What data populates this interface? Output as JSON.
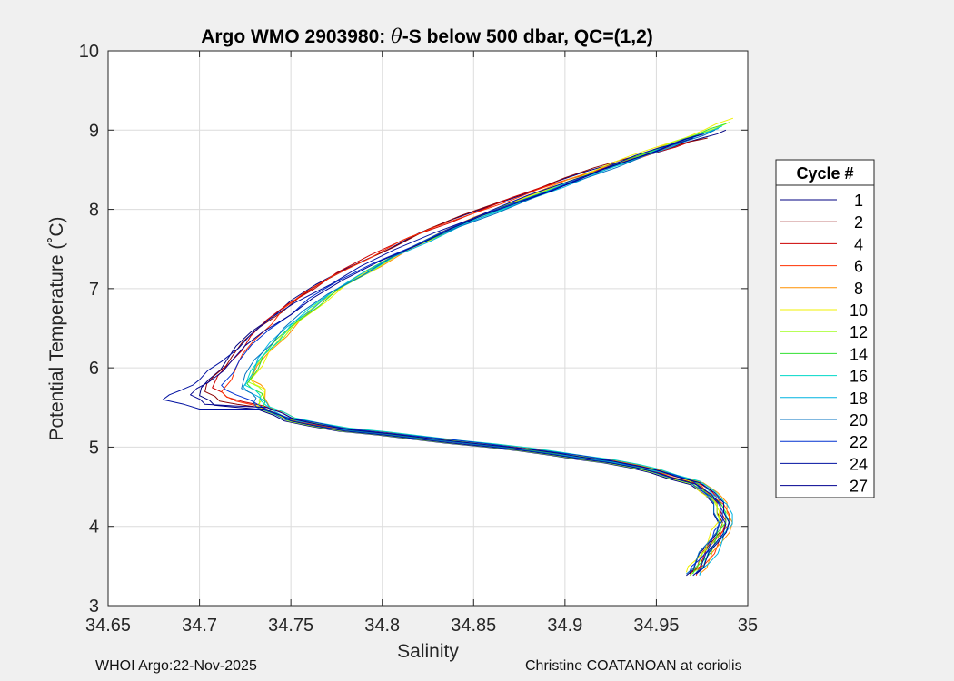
{
  "chart_data": {
    "type": "line",
    "title": "Argo WMO 2903980: θ-S below 500 dbar,  QC=(1,2)",
    "title_prefix": "Argo WMO 2903980: ",
    "title_theta": "θ",
    "title_suffix": "-S below 500 dbar,  QC=(1,2)",
    "xlabel": "Salinity",
    "ylabel": "Potential Temperature (˚C)",
    "xlim": [
      34.65,
      35.0
    ],
    "ylim": [
      3,
      10
    ],
    "xticks": [
      34.65,
      34.7,
      34.75,
      34.8,
      34.85,
      34.9,
      34.95,
      35
    ],
    "xtick_labels": [
      "34.65",
      "34.7",
      "34.75",
      "34.8",
      "34.85",
      "34.9",
      "34.95",
      "35"
    ],
    "yticks": [
      3,
      4,
      5,
      6,
      7,
      8,
      9,
      10
    ],
    "ytick_labels": [
      "3",
      "4",
      "5",
      "6",
      "7",
      "8",
      "9",
      "10"
    ],
    "grid": true,
    "legend_title": "Cycle #",
    "legend_position": "outside-right",
    "series": [
      {
        "name": "1",
        "color": "#000080",
        "s": [
          34.988,
          34.975,
          34.955,
          34.93,
          34.895,
          34.86,
          34.82,
          34.78,
          34.75,
          34.728,
          34.715,
          34.705,
          34.7
        ],
        "t": [
          9.0,
          8.9,
          8.75,
          8.6,
          8.35,
          8.05,
          7.7,
          7.25,
          6.85,
          6.45,
          6.1,
          5.85,
          5.65
        ]
      },
      {
        "name": "2",
        "color": "#8b0000",
        "s": [
          34.978,
          34.96,
          34.935,
          34.9,
          34.865,
          34.825,
          34.785,
          34.755,
          34.732,
          34.718,
          34.708,
          34.703
        ],
        "t": [
          8.9,
          8.8,
          8.65,
          8.4,
          8.1,
          7.75,
          7.3,
          6.9,
          6.5,
          6.15,
          5.9,
          5.7
        ]
      },
      {
        "name": "4",
        "color": "#cc0000",
        "s": [
          34.968,
          34.95,
          34.925,
          34.89,
          34.855,
          34.815,
          34.775,
          34.748,
          34.728,
          34.716,
          34.707
        ],
        "t": [
          8.85,
          8.72,
          8.55,
          8.3,
          8.0,
          7.65,
          7.2,
          6.8,
          6.4,
          6.05,
          5.75
        ]
      },
      {
        "name": "6",
        "color": "#ff3000",
        "s": [
          34.96,
          34.945,
          34.92,
          34.885,
          34.85,
          34.81,
          34.772,
          34.746,
          34.73,
          34.72,
          34.712
        ],
        "t": [
          8.8,
          8.68,
          8.5,
          8.25,
          7.95,
          7.6,
          7.15,
          6.75,
          6.35,
          6.0,
          5.7
        ]
      },
      {
        "name": "8",
        "color": "#ff9000",
        "s": [
          34.985,
          34.97,
          34.948,
          34.92,
          34.888,
          34.85,
          34.815,
          34.78,
          34.755,
          34.738,
          34.728
        ],
        "t": [
          9.05,
          8.92,
          8.75,
          8.52,
          8.25,
          7.9,
          7.5,
          7.05,
          6.6,
          6.2,
          5.85
        ]
      },
      {
        "name": "10",
        "color": "#f0f000",
        "s": [
          34.992,
          34.976,
          34.952,
          34.922,
          34.89,
          34.852,
          34.815,
          34.78,
          34.755,
          34.738,
          34.728
        ],
        "t": [
          9.15,
          9.0,
          8.8,
          8.55,
          8.25,
          7.9,
          7.5,
          7.05,
          6.6,
          6.2,
          5.85
        ]
      },
      {
        "name": "12",
        "color": "#a0ff20",
        "s": [
          34.99,
          34.974,
          34.95,
          34.92,
          34.888,
          34.85,
          34.812,
          34.778,
          34.753,
          34.736,
          34.727
        ],
        "t": [
          9.1,
          8.96,
          8.76,
          8.5,
          8.22,
          7.88,
          7.48,
          7.02,
          6.58,
          6.18,
          5.82
        ]
      },
      {
        "name": "14",
        "color": "#30e030",
        "s": [
          34.988,
          34.972,
          34.948,
          34.918,
          34.886,
          34.848,
          34.81,
          34.776,
          34.752,
          34.735,
          34.726
        ],
        "t": [
          9.08,
          8.94,
          8.74,
          8.48,
          8.2,
          7.86,
          7.46,
          7.0,
          6.56,
          6.16,
          5.8
        ]
      },
      {
        "name": "16",
        "color": "#00d8c8",
        "s": [
          34.986,
          34.97,
          34.946,
          34.916,
          34.884,
          34.846,
          34.808,
          34.774,
          34.75,
          34.734,
          34.725
        ],
        "t": [
          9.05,
          8.91,
          8.71,
          8.45,
          8.17,
          7.83,
          7.43,
          6.98,
          6.54,
          6.14,
          5.78
        ]
      },
      {
        "name": "18",
        "color": "#00b4e0",
        "s": [
          34.984,
          34.968,
          34.944,
          34.914,
          34.882,
          34.844,
          34.806,
          34.772,
          34.748,
          34.732,
          34.724
        ],
        "t": [
          9.02,
          8.88,
          8.68,
          8.42,
          8.14,
          7.8,
          7.4,
          6.95,
          6.52,
          6.12,
          5.76
        ]
      },
      {
        "name": "20",
        "color": "#0070c0",
        "s": [
          34.982,
          34.966,
          34.942,
          34.912,
          34.88,
          34.842,
          34.804,
          34.77,
          34.746,
          34.73,
          34.723
        ],
        "t": [
          9.0,
          8.86,
          8.66,
          8.4,
          8.12,
          7.78,
          7.38,
          6.93,
          6.5,
          6.1,
          5.74
        ]
      },
      {
        "name": "22",
        "color": "#0030d0",
        "s": [
          34.975,
          34.958,
          34.935,
          34.905,
          34.872,
          34.835,
          34.795,
          34.76,
          34.738,
          34.722,
          34.712
        ],
        "t": [
          8.95,
          8.82,
          8.62,
          8.36,
          8.08,
          7.74,
          7.32,
          6.88,
          6.48,
          6.1,
          5.78
        ]
      },
      {
        "name": "24",
        "color": "#0010a0",
        "s": [
          34.97,
          34.952,
          34.928,
          34.898,
          34.865,
          34.828,
          34.788,
          34.752,
          34.728,
          34.712,
          34.7,
          34.69,
          34.68
        ],
        "t": [
          8.9,
          8.78,
          8.58,
          8.32,
          8.04,
          7.7,
          7.28,
          6.82,
          6.42,
          6.08,
          5.85,
          5.72,
          5.6
        ]
      },
      {
        "name": "27",
        "color": "#000090",
        "s": [
          34.976,
          34.96,
          34.938,
          34.908,
          34.876,
          34.838,
          34.798,
          34.762,
          34.735,
          34.718,
          34.705,
          34.695
        ],
        "t": [
          8.95,
          8.83,
          8.64,
          8.38,
          8.1,
          7.76,
          7.34,
          6.88,
          6.46,
          6.1,
          5.82,
          5.66
        ]
      }
    ]
  },
  "footer": {
    "left": "WHOI Argo:22-Nov-2025",
    "right": "Christine COATANOAN at coriolis"
  }
}
